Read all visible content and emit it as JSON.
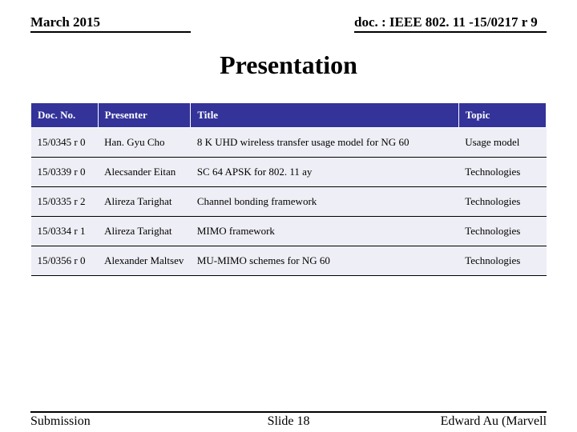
{
  "header": {
    "date": "March 2015",
    "doc_ref": "doc. : IEEE 802. 11 -15/0217 r 9"
  },
  "title": "Presentation",
  "table": {
    "header_bg": "#333399",
    "header_color": "#ffffff",
    "row_bg": "#eeeef6",
    "columns": [
      "Doc. No.",
      "Presenter",
      "Title",
      "Topic"
    ],
    "rows": [
      [
        "15/0345 r 0",
        "Han. Gyu Cho",
        "8 K UHD wireless transfer usage model for NG 60",
        "Usage model"
      ],
      [
        "15/0339 r 0",
        "Alecsander Eitan",
        "SC 64 APSK for 802. 11 ay",
        "Technologies"
      ],
      [
        "15/0335 r 2",
        "Alireza Tarighat",
        "Channel bonding framework",
        "Technologies"
      ],
      [
        "15/0334 r 1",
        "Alireza Tarighat",
        "MIMO framework",
        "Technologies"
      ],
      [
        "15/0356 r 0",
        "Alexander Maltsev",
        "MU-MIMO schemes for NG 60",
        "Technologies"
      ]
    ]
  },
  "footer": {
    "left": "Submission",
    "center": "Slide 18",
    "right": "Edward Au (Marvell"
  }
}
